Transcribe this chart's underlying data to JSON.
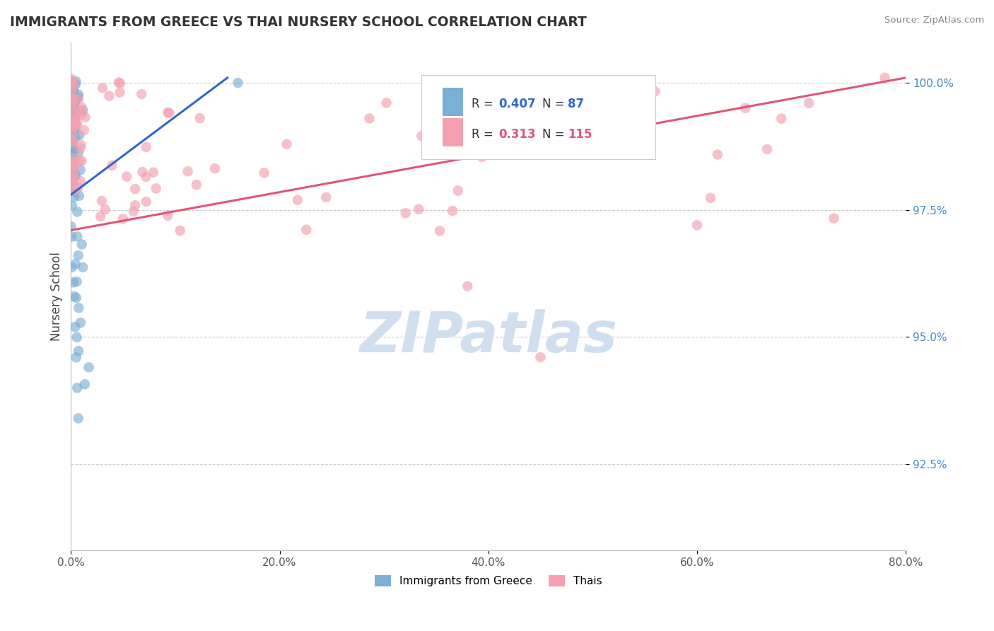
{
  "title": "IMMIGRANTS FROM GREECE VS THAI NURSERY SCHOOL CORRELATION CHART",
  "source_text": "Source: ZipAtlas.com",
  "ylabel": "Nursery School",
  "legend_label_1": "Immigrants from Greece",
  "legend_label_2": "Thais",
  "R1": 0.407,
  "N1": 87,
  "R2": 0.313,
  "N2": 115,
  "color1": "#7BAFD4",
  "color2": "#F4A0B0",
  "trendline1_color": "#3366CC",
  "trendline2_color": "#E05575",
  "watermark_color": "#D0DFF0",
  "xlim": [
    0.0,
    0.8
  ],
  "ylim": [
    0.908,
    1.008
  ],
  "yticks": [
    0.925,
    0.95,
    0.975,
    1.0
  ],
  "ytick_labels": [
    "92.5%",
    "95.0%",
    "97.5%",
    "100.0%"
  ],
  "xticks": [
    0.0,
    0.2,
    0.4,
    0.6,
    0.8
  ],
  "xtick_labels": [
    "0.0%",
    "20.0%",
    "40.0%",
    "60.0%",
    "80.0%"
  ],
  "blue_trendline": [
    [
      0.0,
      0.978
    ],
    [
      0.15,
      1.001
    ]
  ],
  "pink_trendline": [
    [
      0.0,
      0.971
    ],
    [
      0.8,
      1.001
    ]
  ]
}
